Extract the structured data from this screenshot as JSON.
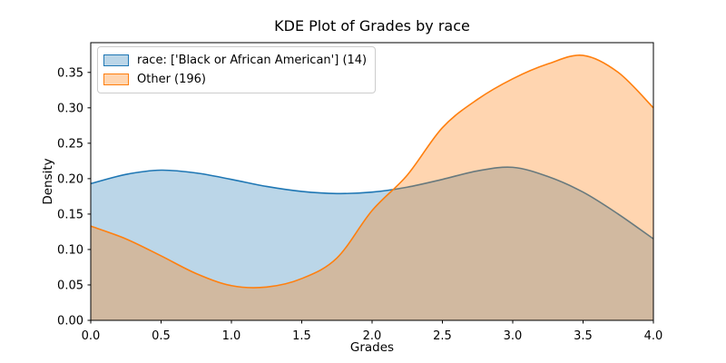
{
  "chart_data": {
    "type": "area",
    "title": "KDE Plot of Grades by race",
    "xlabel": "Grades",
    "ylabel": "Density",
    "xlim": [
      0.0,
      4.0
    ],
    "ylim": [
      0.0,
      0.392
    ],
    "grid": false,
    "legend_position": "upper left",
    "x_tick_values": [
      0.0,
      0.5,
      1.0,
      1.5,
      2.0,
      2.5,
      3.0,
      3.5,
      4.0
    ],
    "x_tick_labels": [
      "0.0",
      "0.5",
      "1.0",
      "1.5",
      "2.0",
      "2.5",
      "3.0",
      "3.5",
      "4.0"
    ],
    "y_tick_values": [
      0.0,
      0.05,
      0.1,
      0.15,
      0.2,
      0.25,
      0.3,
      0.35
    ],
    "y_tick_labels": [
      "0.00",
      "0.05",
      "0.10",
      "0.15",
      "0.20",
      "0.25",
      "0.30",
      "0.35"
    ],
    "x": [
      0.0,
      0.25,
      0.5,
      0.75,
      1.0,
      1.25,
      1.5,
      1.75,
      2.0,
      2.25,
      2.5,
      2.75,
      3.0,
      3.25,
      3.5,
      3.75,
      4.0
    ],
    "series": [
      {
        "name": "race: ['Black or African American'] (14)",
        "line_color": "#1f77b4",
        "fill_color": "rgba(31,119,180,0.30)",
        "values": [
          0.193,
          0.206,
          0.212,
          0.208,
          0.199,
          0.189,
          0.182,
          0.179,
          0.181,
          0.188,
          0.199,
          0.211,
          0.216,
          0.203,
          0.181,
          0.15,
          0.115
        ]
      },
      {
        "name": "Other (196)",
        "line_color": "#ff7f0e",
        "fill_color": "rgba(255,127,14,0.33)",
        "values": [
          0.133,
          0.115,
          0.091,
          0.066,
          0.049,
          0.047,
          0.059,
          0.088,
          0.155,
          0.205,
          0.272,
          0.312,
          0.341,
          0.362,
          0.374,
          0.35,
          0.3
        ]
      }
    ],
    "annotations": []
  },
  "style": {
    "spine_color": "#000000",
    "tick_color": "#000000",
    "tick_label_color": "#000000",
    "legend_border_color": "#cccccc",
    "legend_background": "rgba(255,255,255,0.8)"
  }
}
